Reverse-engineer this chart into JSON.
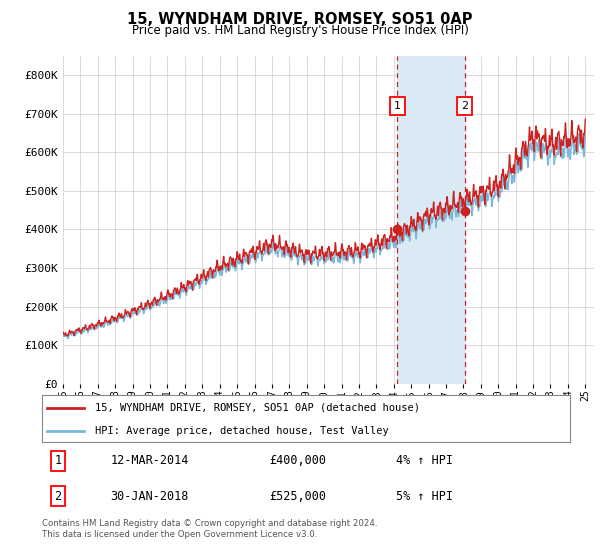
{
  "title": "15, WYNDHAM DRIVE, ROMSEY, SO51 0AP",
  "subtitle": "Price paid vs. HM Land Registry's House Price Index (HPI)",
  "legend_line1": "15, WYNDHAM DRIVE, ROMSEY, SO51 0AP (detached house)",
  "legend_line2": "HPI: Average price, detached house, Test Valley",
  "annotation1_date": "12-MAR-2014",
  "annotation1_price": "£400,000",
  "annotation1_hpi": "4% ↑ HPI",
  "annotation1_year": 2014.2,
  "annotation1_value": 400000,
  "annotation2_date": "30-JAN-2018",
  "annotation2_price": "£525,000",
  "annotation2_hpi": "5% ↑ HPI",
  "annotation2_year": 2018.08,
  "annotation2_value": 525000,
  "footer": "Contains HM Land Registry data © Crown copyright and database right 2024.\nThis data is licensed under the Open Government Licence v3.0.",
  "hpi_color": "#7ab8d9",
  "price_color": "#cc2222",
  "background_color": "#ffffff",
  "ylim": [
    0,
    850000
  ],
  "xlim_start": 1995,
  "xlim_end": 2025,
  "shaded_region_color": "#daeaf5"
}
